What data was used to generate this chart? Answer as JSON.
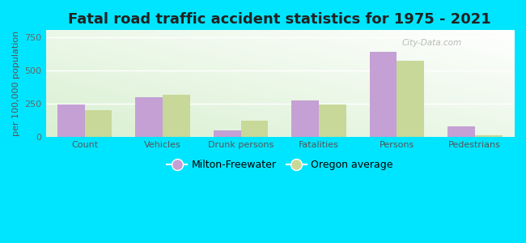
{
  "title": "Fatal road traffic accident statistics for 1975 - 2021",
  "categories": [
    "Count",
    "Vehicles",
    "Drunk persons",
    "Fatalities",
    "Persons",
    "Pedestrians"
  ],
  "milton_freewater": [
    245,
    300,
    48,
    275,
    640,
    80
  ],
  "oregon_average": [
    200,
    315,
    120,
    240,
    570,
    10
  ],
  "bar_color_mf": "#c4a0d4",
  "bar_color_or": "#c8d898",
  "ylabel": "per 100,000 population",
  "ylim": [
    0,
    800
  ],
  "yticks": [
    0,
    250,
    500,
    750
  ],
  "bg_color_fig": "#00e5ff",
  "legend_labels": [
    "Milton-Freewater",
    "Oregon average"
  ],
  "bar_width": 0.35,
  "title_fontsize": 13,
  "axis_label_fontsize": 8,
  "tick_fontsize": 8
}
